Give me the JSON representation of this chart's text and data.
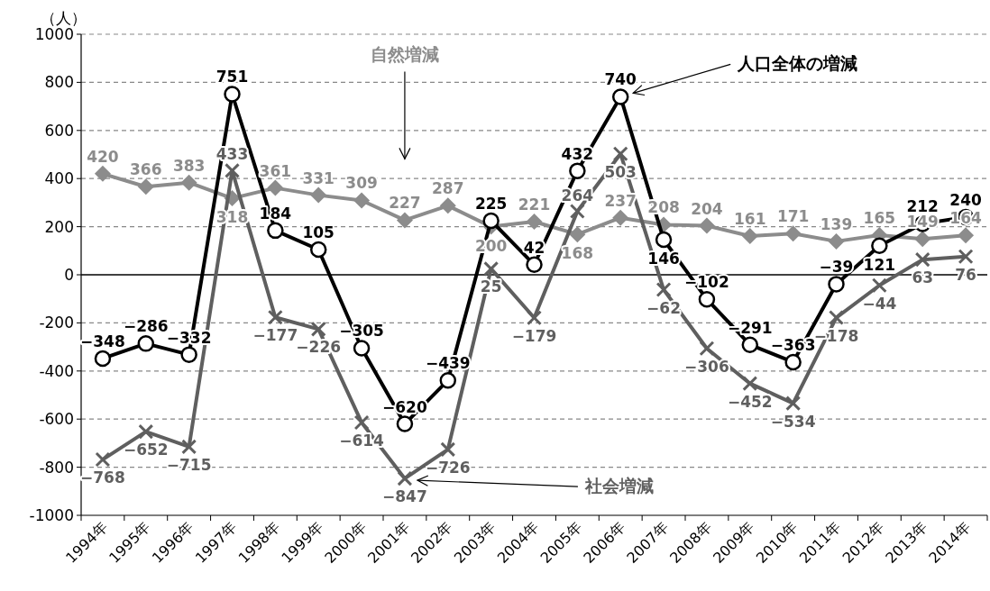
{
  "chart_data": {
    "type": "line",
    "ylabel": "（人）",
    "categories": [
      "1994年",
      "1995年",
      "1996年",
      "1997年",
      "1998年",
      "1999年",
      "2000年",
      "2001年",
      "2002年",
      "2003年",
      "2004年",
      "2005年",
      "2006年",
      "2007年",
      "2008年",
      "2009年",
      "2010年",
      "2011年",
      "2012年",
      "2013年",
      "2014年"
    ],
    "series": [
      {
        "name": "人口全体の増減",
        "color": "#000000",
        "marker": "circle",
        "values": [
          -348,
          -286,
          -332,
          751,
          184,
          105,
          -305,
          -620,
          -439,
          225,
          42,
          432,
          740,
          146,
          -102,
          -291,
          -363,
          -39,
          121,
          212,
          240
        ]
      },
      {
        "name": "自然増減",
        "color": "#8c8c8c",
        "marker": "diamond",
        "values": [
          420,
          366,
          383,
          318,
          361,
          331,
          309,
          227,
          287,
          200,
          221,
          168,
          237,
          208,
          204,
          161,
          171,
          139,
          165,
          149,
          164
        ]
      },
      {
        "name": "社会増減",
        "color": "#5f5f5f",
        "marker": "cross",
        "values": [
          -768,
          -652,
          -715,
          433,
          -177,
          -226,
          -614,
          -847,
          -726,
          25,
          -179,
          264,
          503,
          -62,
          -306,
          -452,
          -534,
          -178,
          -44,
          63,
          76
        ]
      }
    ],
    "ylim": [
      -1000,
      1000
    ],
    "yticks": [
      -1000,
      -800,
      -600,
      -400,
      -200,
      0,
      200,
      400,
      600,
      800,
      1000
    ],
    "grid": "y",
    "legend": false,
    "data_labels": true,
    "line_style": "solid"
  }
}
